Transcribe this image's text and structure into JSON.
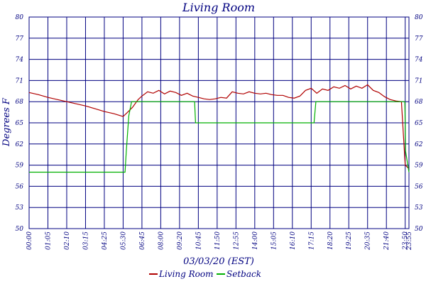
{
  "chart_data": {
    "type": "line",
    "title": "Living Room",
    "xlabel": "03/03/20 (EST)",
    "ylabel": "Degrees F",
    "y_ticks_left": [
      "80",
      "77",
      "74",
      "71",
      "68",
      "65",
      "62",
      "59",
      "56",
      "53",
      "50"
    ],
    "y_ticks_right": [
      "80",
      "77",
      "74",
      "71",
      "68",
      "65",
      "62",
      "59",
      "56",
      "53",
      "50"
    ],
    "x_ticks": [
      "00:00",
      "01:05",
      "02:10",
      "03:15",
      "04:25",
      "05:30",
      "06:45",
      "08:00",
      "09:20",
      "10:45",
      "11:50",
      "12:55",
      "14:00",
      "15:05",
      "16:10",
      "17:15",
      "18:20",
      "19:25",
      "20:35",
      "21:40",
      "23:50",
      "23:55"
    ],
    "x_tick_index": [
      0,
      1,
      2,
      3,
      4,
      5,
      6,
      7,
      8,
      9,
      10,
      11,
      12,
      13,
      14,
      15,
      16,
      17,
      18,
      19,
      20,
      20.2
    ],
    "ylim": [
      50,
      80
    ],
    "grid": true,
    "legend_position": "bottom",
    "colors": {
      "grid": "#000080",
      "text": "#000080",
      "living_room": "#b00000",
      "setback": "#00b000"
    },
    "series": [
      {
        "name": "Living Room",
        "color": "#b00000",
        "x": [
          0,
          0.5,
          1,
          1.5,
          2,
          2.5,
          3,
          3.5,
          4,
          4.5,
          5,
          5.2,
          5.5,
          5.8,
          6,
          6.3,
          6.6,
          6.9,
          7.2,
          7.5,
          7.8,
          8.1,
          8.4,
          8.7,
          9,
          9.3,
          9.6,
          9.9,
          10.2,
          10.5,
          10.8,
          11.1,
          11.4,
          11.7,
          12,
          12.3,
          12.6,
          12.9,
          13.2,
          13.5,
          13.8,
          14.1,
          14.4,
          14.7,
          15,
          15.3,
          15.6,
          15.9,
          16.2,
          16.5,
          16.8,
          17.1,
          17.4,
          17.7,
          18,
          18.3,
          18.6,
          18.9,
          19.2,
          19.5,
          19.8,
          20,
          20.2
        ],
        "y": [
          69.3,
          69,
          68.6,
          68.3,
          68,
          67.7,
          67.4,
          67,
          66.6,
          66.3,
          65.9,
          66.4,
          67.2,
          68.3,
          68.8,
          69.4,
          69.2,
          69.6,
          69.1,
          69.5,
          69.3,
          68.9,
          69.2,
          68.8,
          68.6,
          68.4,
          68.3,
          68.4,
          68.6,
          68.5,
          69.4,
          69.2,
          69.1,
          69.4,
          69.2,
          69.1,
          69.2,
          69.0,
          68.9,
          68.9,
          68.6,
          68.5,
          68.8,
          69.6,
          69.9,
          69.2,
          69.8,
          69.6,
          70.1,
          69.9,
          70.3,
          69.8,
          70.2,
          69.9,
          70.4,
          69.6,
          69.3,
          68.7,
          68.3,
          68.1,
          68.0,
          59.0,
          58.5
        ]
      },
      {
        "name": "Setback",
        "color": "#00b000",
        "x": [
          0,
          5.1,
          5.17,
          5.3,
          5.45,
          5.6,
          8.8,
          8.85,
          15.1,
          15.15,
          15.25,
          19.98,
          20.02,
          20.2
        ],
        "y": [
          58,
          58,
          61,
          66,
          68,
          68,
          68,
          65,
          65,
          65,
          68,
          68,
          61,
          58
        ]
      }
    ]
  }
}
